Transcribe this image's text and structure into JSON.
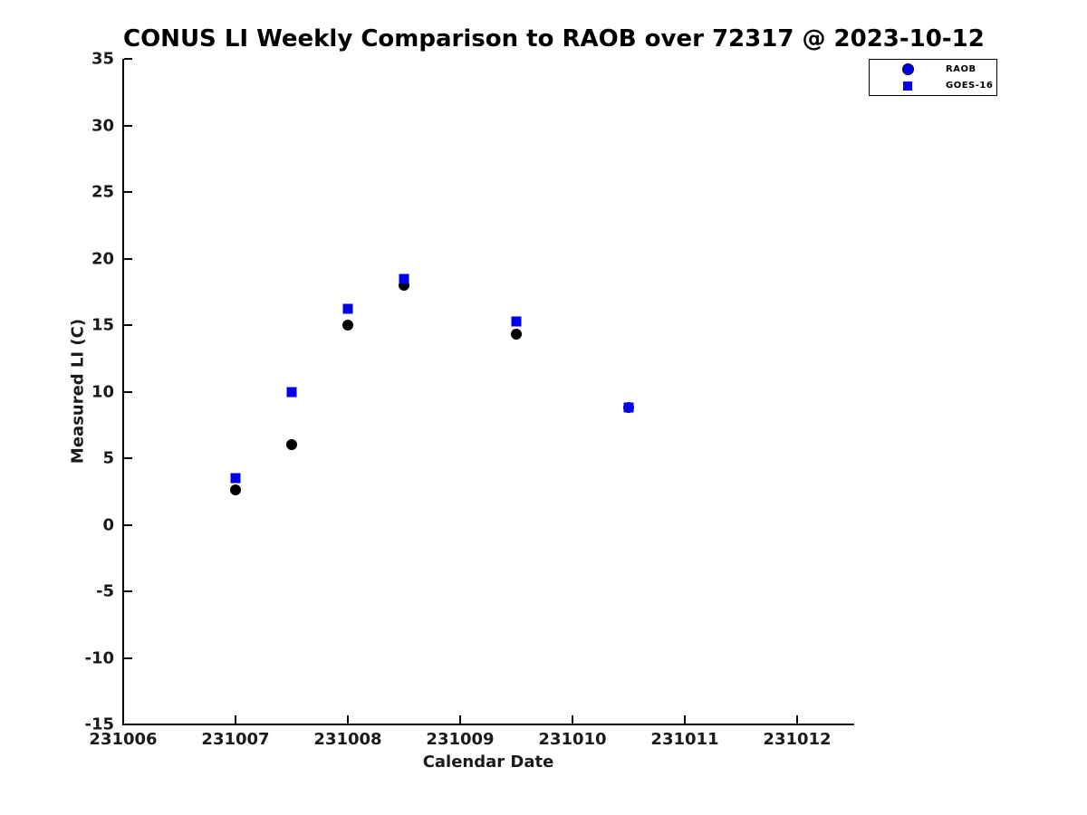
{
  "title": "CONUS LI Weekly Comparison to RAOB over 72317 @ 2023-10-12",
  "chart_data": {
    "type": "scatter",
    "title": "CONUS LI Weekly Comparison to RAOB over 72317 @ 2023-10-12",
    "xlabel": "Calendar Date",
    "ylabel": "Measured LI (C)",
    "xlim": [
      231006,
      231012.5
    ],
    "ylim": [
      -15,
      35
    ],
    "x_ticks": [
      231006,
      231007,
      231008,
      231009,
      231010,
      231011,
      231012
    ],
    "y_ticks": [
      35,
      30,
      25,
      20,
      15,
      10,
      5,
      0,
      -5,
      -10,
      -15
    ],
    "grid": false,
    "legend_position": "top-right",
    "colors": {
      "blue": "#0000ee",
      "black": "#000000"
    },
    "series": [
      {
        "name": "RAOB",
        "marker": "circle",
        "color": "#000000",
        "legend_color": "#0000ee",
        "points": [
          [
            231007.0,
            2.6
          ],
          [
            231007.5,
            6.0
          ],
          [
            231008.0,
            15.0
          ],
          [
            231008.5,
            18.0
          ],
          [
            231009.5,
            14.3
          ],
          [
            231010.5,
            8.8
          ]
        ]
      },
      {
        "name": "GOES-16",
        "marker": "square",
        "color": "#0000ee",
        "legend_color": "#0000ee",
        "points": [
          [
            231007.0,
            3.5
          ],
          [
            231007.5,
            10.0
          ],
          [
            231008.0,
            16.2
          ],
          [
            231008.5,
            18.5
          ],
          [
            231009.5,
            15.3
          ],
          [
            231010.5,
            8.8
          ]
        ]
      }
    ]
  }
}
